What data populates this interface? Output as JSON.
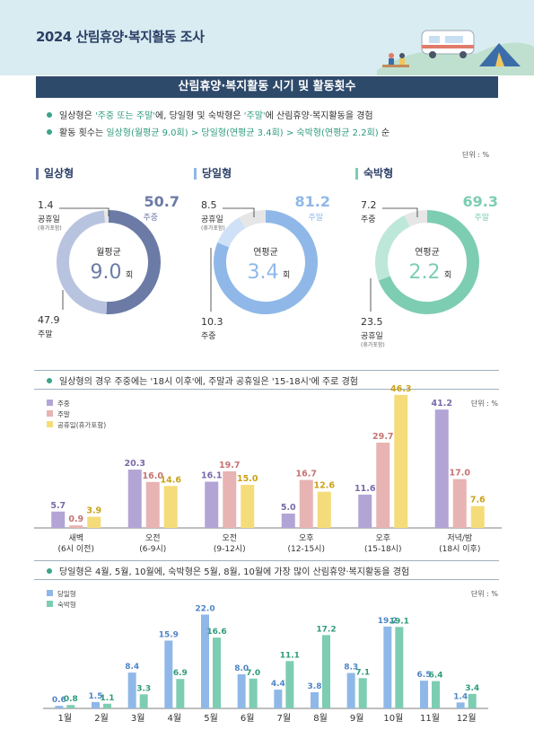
{
  "page": {
    "title": "2024 산림휴양·복지활동 조사",
    "section_title": "산림휴양·복지활동 시기 및 활동횟수",
    "bullets": [
      {
        "parts": [
          [
            "일상형은 ",
            false
          ],
          [
            "'주중 또는 주말'",
            true
          ],
          [
            "에, 당일형 및 숙박형은 ",
            false
          ],
          [
            "'주말'",
            true
          ],
          [
            "에 산림휴양·복지활동을 경험",
            false
          ]
        ]
      },
      {
        "parts": [
          [
            "활동 횟수는 ",
            false
          ],
          [
            "일상형(월평균 9.0회) > 당일형(연평균 3.4회) > 숙박형(연평균 2.2회)",
            true
          ],
          [
            " 순",
            false
          ]
        ]
      }
    ],
    "unit_label": "단위 : %"
  },
  "donuts": [
    {
      "title": "일상형",
      "color": "#6b7ba6",
      "light": "#b8c4df",
      "center_label": "월평균",
      "center_value": "9.0",
      "center_unit": "회",
      "segments": [
        {
          "label": "주중",
          "value": 50.7,
          "color": "#6b7ba6"
        },
        {
          "label": "주말",
          "value": 47.9,
          "color": "#b8c4df"
        },
        {
          "label": "공휴일",
          "sub": "(휴가포함)",
          "value": 1.4,
          "color": "#e6e6e6"
        }
      ]
    },
    {
      "title": "당일형",
      "color": "#8fb8e8",
      "light": "#cfe1f6",
      "center_label": "연평균",
      "center_value": "3.4",
      "center_unit": "회",
      "segments": [
        {
          "label": "주말",
          "value": 81.2,
          "color": "#8fb8e8"
        },
        {
          "label": "주중",
          "value": 10.3,
          "color": "#cfe1f6"
        },
        {
          "label": "공휴일",
          "sub": "(휴가포함)",
          "value": 8.5,
          "color": "#e6e6e6"
        }
      ]
    },
    {
      "title": "숙박형",
      "color": "#7dcdb3",
      "light": "#bde7d9",
      "center_label": "연평균",
      "center_value": "2.2",
      "center_unit": "회",
      "segments": [
        {
          "label": "주말",
          "value": 69.3,
          "color": "#7dcdb3"
        },
        {
          "label": "공휴일",
          "sub": "(휴가포함)",
          "value": 23.5,
          "color": "#bde7d9"
        },
        {
          "label": "주중",
          "value": 7.2,
          "color": "#e6e6e6"
        }
      ]
    }
  ],
  "chart_data": [
    {
      "type": "bar",
      "title": "일상형의 경우 주중에는 '18시 이후'에, 주말과 공휴일은 '15-18시'에 주로 경험",
      "unit": "단위 : %",
      "categories": [
        "새벽\n(6시 이전)",
        "오전\n(6-9시)",
        "오전\n(9-12시)",
        "오후\n(12-15시)",
        "오후\n(15-18시)",
        "저녁/밤\n(18시 이후)"
      ],
      "series": [
        {
          "name": "주중",
          "color": "#b3a4d6",
          "values": [
            5.7,
            20.3,
            16.1,
            5.0,
            11.6,
            41.2
          ]
        },
        {
          "name": "주말",
          "color": "#e8b3b3",
          "values": [
            0.9,
            16.0,
            19.7,
            16.7,
            29.7,
            17.0
          ]
        },
        {
          "name": "공휴일(휴가포함)",
          "color": "#f5dc7a",
          "values": [
            3.9,
            14.6,
            15.0,
            12.6,
            46.3,
            7.6
          ]
        }
      ],
      "ylim": [
        0,
        50
      ]
    },
    {
      "type": "bar",
      "title": "당일형은 4월, 5월, 10월에, 숙박형은 5월, 8월, 10월에 가장 많이 산림휴양·복지활동을 경험",
      "unit": "단위 : %",
      "categories": [
        "1월",
        "2월",
        "3월",
        "4월",
        "5월",
        "6월",
        "7월",
        "8월",
        "9월",
        "10월",
        "11월",
        "12월"
      ],
      "series": [
        {
          "name": "당일형",
          "color": "#8fb8e8",
          "values": [
            0.6,
            1.5,
            8.4,
            15.9,
            22.0,
            8.0,
            4.4,
            3.8,
            8.3,
            19.2,
            6.5,
            1.4
          ]
        },
        {
          "name": "숙박형",
          "color": "#7dcdb3",
          "values": [
            0.8,
            1.1,
            3.3,
            6.9,
            16.6,
            7.0,
            11.1,
            17.2,
            7.1,
            19.1,
            6.4,
            3.4
          ]
        }
      ],
      "ylim": [
        0,
        24
      ]
    }
  ]
}
